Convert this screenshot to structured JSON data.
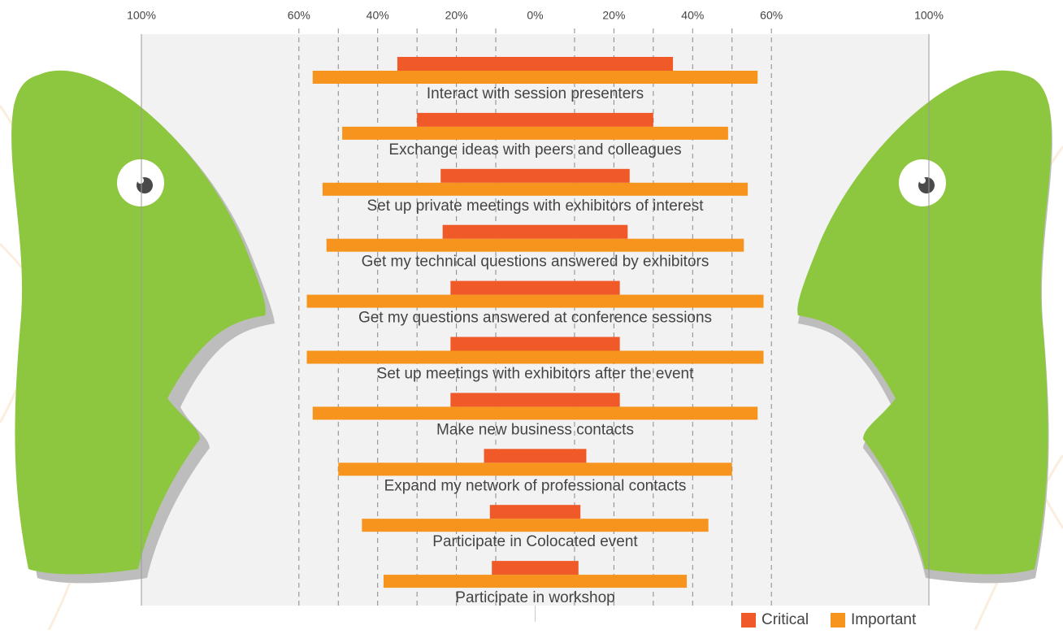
{
  "chart_data": {
    "type": "diverging-bar",
    "categories": [
      "Interact with session presenters",
      "Exchange ideas with peers and colleagues",
      "Set up private meetings with exhibitors of interest",
      "Get my technical questions answered by exhibitors",
      "Get my questions answered at conference sessions",
      "Set up meetings with exhibitors after the event",
      "Make new business contacts",
      "Expand my network of professional contacts",
      "Participate in Colocated event",
      "Participate in workshop"
    ],
    "series": [
      {
        "name": "Critical",
        "color": "#f05a28",
        "values": [
          35,
          30,
          24,
          23.5,
          21.5,
          21.5,
          21.5,
          13,
          11.5,
          11
        ]
      },
      {
        "name": "Important",
        "color": "#f7941d",
        "values": [
          56.5,
          49,
          54,
          53,
          58,
          58,
          56.5,
          50,
          44,
          38.5
        ]
      }
    ],
    "xlim": [
      -100,
      100
    ],
    "xticks": [
      {
        "value": -100,
        "label": "100%"
      },
      {
        "value": -60,
        "label": "60%"
      },
      {
        "value": -40,
        "label": "40%"
      },
      {
        "value": -20,
        "label": "20%"
      },
      {
        "value": 0,
        "label": "0%"
      },
      {
        "value": 20,
        "label": "20%"
      },
      {
        "value": 40,
        "label": "40%"
      },
      {
        "value": 60,
        "label": "60%"
      },
      {
        "value": 100,
        "label": "100%"
      }
    ],
    "minor_xticks": [
      -50,
      -30,
      -10,
      10,
      30,
      50
    ],
    "grid": true,
    "legend": "bottom-right"
  }
}
